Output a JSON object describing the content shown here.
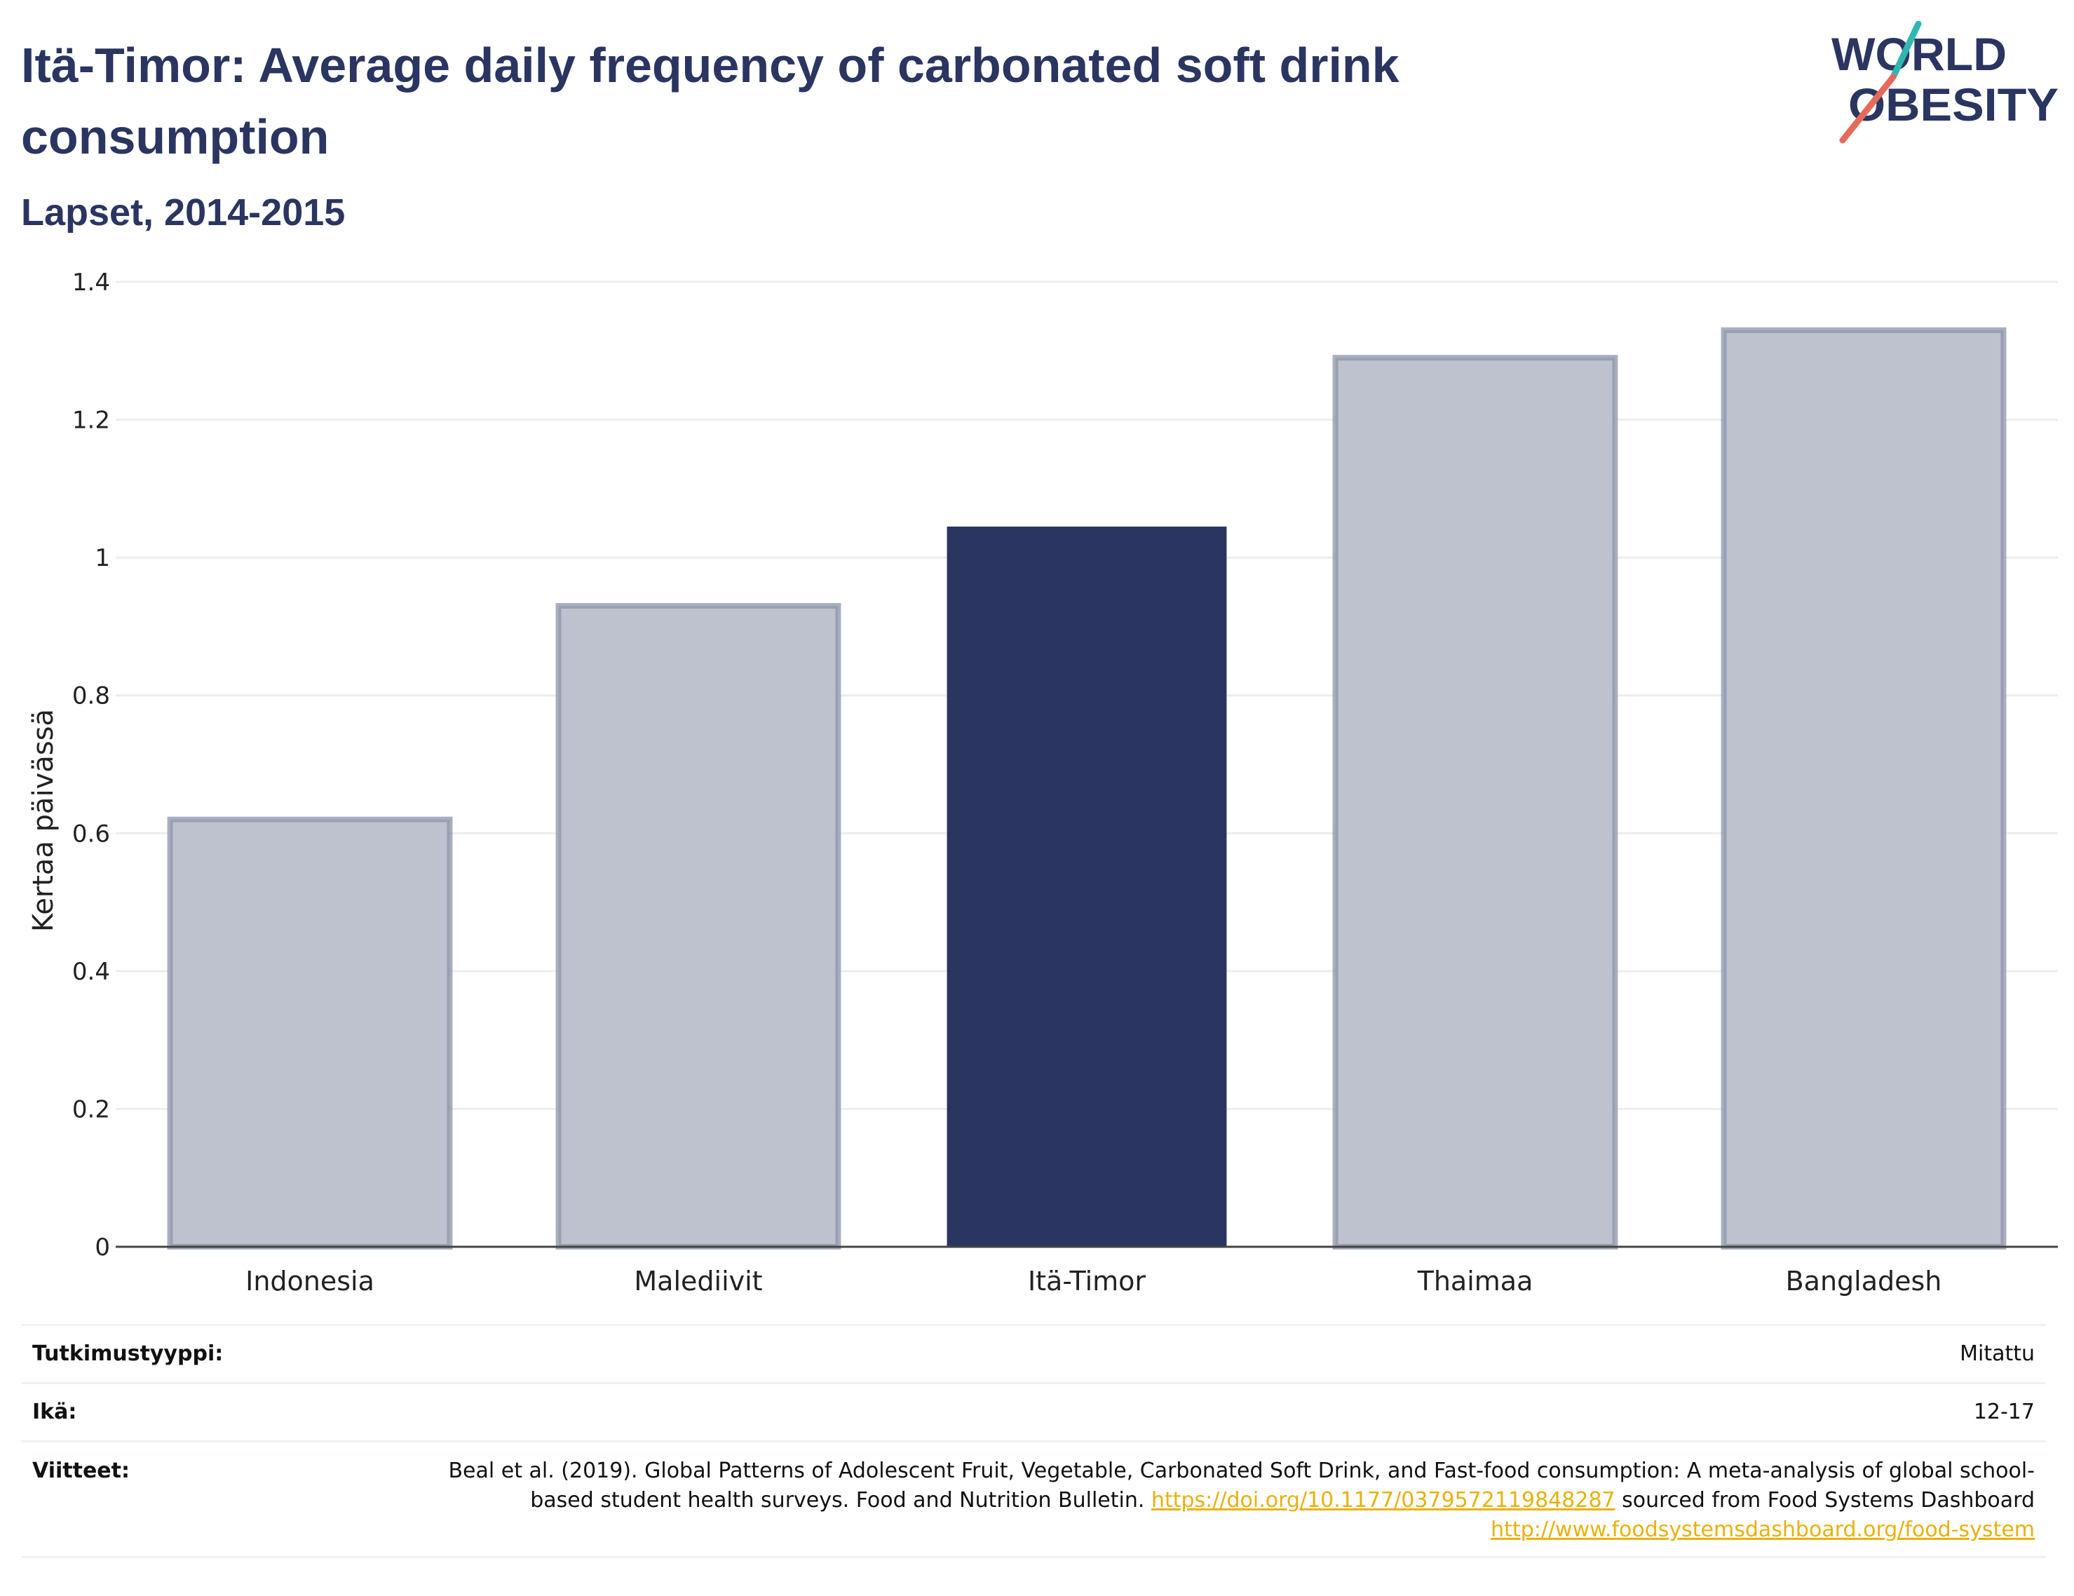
{
  "header": {
    "title": "Itä-Timor: Average daily frequency of carbonated soft drink consumption",
    "subtitle": "Lapset, 2014-2015"
  },
  "logo": {
    "line1": "WORLD",
    "line2": "OBESITY",
    "colors": {
      "text": "#2a3561",
      "slash_teal": "#2fb7b0",
      "slash_coral": "#e56a5b"
    }
  },
  "chart_data": {
    "type": "bar",
    "categories": [
      "Indonesia",
      "Malediivit",
      "Itä-Timor",
      "Thaimaa",
      "Bangladesh"
    ],
    "values": [
      0.62,
      0.93,
      1.045,
      1.29,
      1.33
    ],
    "highlight": "Itä-Timor",
    "title": "Itä-Timor: Average daily frequency of carbonated soft drink consumption",
    "subtitle": "Lapset, 2014-2015",
    "xlabel": "",
    "ylabel": "Kertaa päivässä",
    "ylim": [
      0,
      1.4
    ],
    "yticks": [
      0,
      0.2,
      0.4,
      0.6,
      0.8,
      1,
      1.2,
      1.4
    ],
    "ytick_labels": [
      "0",
      "0.2",
      "0.4",
      "0.6",
      "0.8",
      "1",
      "1.2",
      "1.4"
    ],
    "grid": true,
    "colors": {
      "highlight": "#2a3561",
      "other_fill": "#bec2ce",
      "other_stroke": "#8e94aa",
      "grid": "#ebedf0",
      "axis": "#444444"
    }
  },
  "meta": {
    "study_type": {
      "label": "Tutkimustyyppi:",
      "value": "Mitattu"
    },
    "age": {
      "label": "Ikä:",
      "value": "12-17"
    },
    "references": {
      "label": "Viitteet:",
      "text1": "Beal et al. (2019). Global Patterns of Adolescent Fruit, Vegetable, Carbonated Soft Drink, and Fast-food consumption: A meta-analysis of global school-based student health surveys. Food and Nutrition Bulletin.",
      "link1": "https://doi.org/10.1177/0379572119848287",
      "text2": "sourced from Food Systems Dashboard",
      "link2": "http://www.foodsystemsdashboard.org/food-system"
    }
  }
}
